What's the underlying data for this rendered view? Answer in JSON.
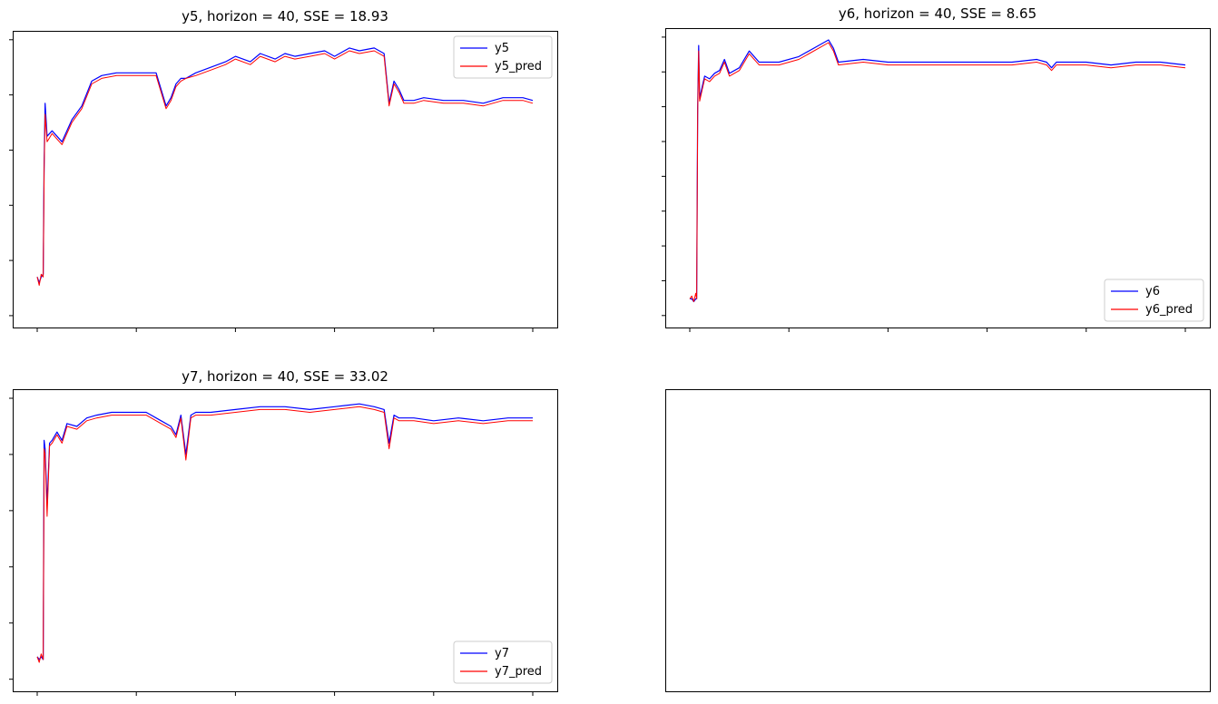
{
  "figure": {
    "background": "#ffffff",
    "layout": "2x2 grid; bottom-right panel empty",
    "colors": {
      "actual": "#0000ff",
      "predicted": "#ff0000"
    }
  },
  "chart_data": [
    {
      "type": "line",
      "title": "y5, horizon = 40, SSE = 18.93",
      "xlabel": "",
      "ylabel": "",
      "x_tick_labels": "none shown",
      "y_tick_labels": "none shown",
      "x_ticks": 6,
      "y_ticks": 6,
      "xlim": [
        0,
        1
      ],
      "ylim": [
        0,
        1
      ],
      "legend_location": "upper right",
      "grid": false,
      "series": [
        {
          "name": "y5",
          "color": "#0000ff",
          "x": [
            0,
            0.004,
            0.008,
            0.012,
            0.014,
            0.016,
            0.02,
            0.03,
            0.05,
            0.07,
            0.09,
            0.11,
            0.13,
            0.16,
            0.2,
            0.24,
            0.25,
            0.26,
            0.27,
            0.28,
            0.29,
            0.3,
            0.32,
            0.35,
            0.38,
            0.4,
            0.43,
            0.45,
            0.48,
            0.5,
            0.52,
            0.55,
            0.58,
            0.6,
            0.63,
            0.65,
            0.68,
            0.7,
            0.71,
            0.72,
            0.73,
            0.74,
            0.76,
            0.78,
            0.82,
            0.86,
            0.9,
            0.94,
            0.98,
            1.0
          ],
          "y": [
            0.14,
            0.12,
            0.14,
            0.15,
            0.55,
            0.77,
            0.65,
            0.67,
            0.63,
            0.71,
            0.76,
            0.85,
            0.87,
            0.88,
            0.88,
            0.88,
            0.82,
            0.76,
            0.79,
            0.84,
            0.86,
            0.86,
            0.88,
            0.9,
            0.92,
            0.94,
            0.92,
            0.95,
            0.93,
            0.95,
            0.94,
            0.95,
            0.96,
            0.94,
            0.97,
            0.96,
            0.97,
            0.95,
            0.77,
            0.85,
            0.82,
            0.78,
            0.78,
            0.79,
            0.78,
            0.78,
            0.77,
            0.79,
            0.79,
            0.78
          ]
        },
        {
          "name": "y5_pred",
          "color": "#ff0000",
          "x": [
            0,
            0.004,
            0.008,
            0.012,
            0.014,
            0.016,
            0.02,
            0.03,
            0.05,
            0.07,
            0.09,
            0.11,
            0.13,
            0.16,
            0.2,
            0.24,
            0.25,
            0.26,
            0.27,
            0.28,
            0.29,
            0.3,
            0.32,
            0.35,
            0.38,
            0.4,
            0.43,
            0.45,
            0.48,
            0.5,
            0.52,
            0.55,
            0.58,
            0.6,
            0.63,
            0.65,
            0.68,
            0.7,
            0.71,
            0.72,
            0.73,
            0.74,
            0.76,
            0.78,
            0.82,
            0.86,
            0.9,
            0.94,
            0.98,
            1.0
          ],
          "y": [
            0.14,
            0.11,
            0.15,
            0.14,
            0.52,
            0.73,
            0.63,
            0.66,
            0.62,
            0.7,
            0.75,
            0.84,
            0.86,
            0.87,
            0.87,
            0.87,
            0.81,
            0.75,
            0.78,
            0.83,
            0.85,
            0.86,
            0.87,
            0.89,
            0.91,
            0.93,
            0.91,
            0.94,
            0.92,
            0.94,
            0.93,
            0.94,
            0.95,
            0.93,
            0.96,
            0.95,
            0.96,
            0.94,
            0.76,
            0.84,
            0.81,
            0.77,
            0.77,
            0.78,
            0.77,
            0.77,
            0.76,
            0.78,
            0.78,
            0.77
          ]
        }
      ]
    },
    {
      "type": "line",
      "title": "y6, horizon = 40, SSE = 8.65",
      "xlabel": "",
      "ylabel": "",
      "x_tick_labels": "none shown",
      "y_tick_labels": "none shown",
      "x_ticks": 6,
      "y_ticks": 9,
      "xlim": [
        0,
        1
      ],
      "ylim": [
        0,
        1
      ],
      "legend_location": "lower right",
      "grid": false,
      "series": [
        {
          "name": "y6",
          "color": "#0000ff",
          "x": [
            0,
            0.004,
            0.008,
            0.012,
            0.014,
            0.016,
            0.018,
            0.02,
            0.025,
            0.03,
            0.04,
            0.05,
            0.06,
            0.07,
            0.08,
            0.1,
            0.12,
            0.14,
            0.18,
            0.22,
            0.26,
            0.28,
            0.29,
            0.3,
            0.35,
            0.4,
            0.5,
            0.6,
            0.65,
            0.7,
            0.72,
            0.73,
            0.74,
            0.76,
            0.8,
            0.85,
            0.9,
            0.95,
            1.0
          ],
          "y": [
            0.06,
            0.06,
            0.05,
            0.06,
            0.06,
            0.75,
            0.97,
            0.78,
            0.82,
            0.86,
            0.85,
            0.87,
            0.88,
            0.92,
            0.87,
            0.89,
            0.95,
            0.91,
            0.91,
            0.93,
            0.97,
            0.99,
            0.96,
            0.91,
            0.92,
            0.91,
            0.91,
            0.91,
            0.91,
            0.92,
            0.91,
            0.89,
            0.91,
            0.91,
            0.91,
            0.9,
            0.91,
            0.91,
            0.9
          ]
        },
        {
          "name": "y6_pred",
          "color": "#ff0000",
          "x": [
            0,
            0.004,
            0.008,
            0.012,
            0.014,
            0.016,
            0.018,
            0.02,
            0.025,
            0.03,
            0.04,
            0.05,
            0.06,
            0.07,
            0.08,
            0.1,
            0.12,
            0.14,
            0.18,
            0.22,
            0.26,
            0.28,
            0.29,
            0.3,
            0.35,
            0.4,
            0.5,
            0.6,
            0.65,
            0.7,
            0.72,
            0.73,
            0.74,
            0.76,
            0.8,
            0.85,
            0.9,
            0.95,
            1.0
          ],
          "y": [
            0.06,
            0.07,
            0.05,
            0.08,
            0.06,
            0.72,
            0.95,
            0.77,
            0.81,
            0.85,
            0.84,
            0.86,
            0.87,
            0.91,
            0.86,
            0.88,
            0.94,
            0.9,
            0.9,
            0.92,
            0.96,
            0.98,
            0.95,
            0.9,
            0.91,
            0.9,
            0.9,
            0.9,
            0.9,
            0.91,
            0.9,
            0.88,
            0.9,
            0.9,
            0.9,
            0.89,
            0.9,
            0.9,
            0.89
          ]
        }
      ]
    },
    {
      "type": "line",
      "title": "y7, horizon = 40, SSE = 33.02",
      "xlabel": "",
      "ylabel": "",
      "x_tick_labels": "none shown",
      "y_tick_labels": "none shown",
      "x_ticks": 6,
      "y_ticks": 6,
      "xlim": [
        0,
        1
      ],
      "ylim": [
        0,
        1
      ],
      "legend_location": "lower right",
      "grid": false,
      "series": [
        {
          "name": "y7",
          "color": "#0000ff",
          "x": [
            0,
            0.004,
            0.008,
            0.012,
            0.014,
            0.016,
            0.02,
            0.025,
            0.03,
            0.04,
            0.05,
            0.06,
            0.08,
            0.1,
            0.12,
            0.15,
            0.18,
            0.22,
            0.25,
            0.27,
            0.28,
            0.29,
            0.3,
            0.31,
            0.32,
            0.35,
            0.4,
            0.45,
            0.5,
            0.55,
            0.6,
            0.65,
            0.68,
            0.7,
            0.71,
            0.72,
            0.73,
            0.76,
            0.8,
            0.85,
            0.9,
            0.95,
            1.0
          ],
          "y": [
            0.08,
            0.07,
            0.08,
            0.07,
            0.85,
            0.82,
            0.62,
            0.84,
            0.85,
            0.88,
            0.85,
            0.91,
            0.9,
            0.93,
            0.94,
            0.95,
            0.95,
            0.95,
            0.92,
            0.9,
            0.87,
            0.94,
            0.8,
            0.94,
            0.95,
            0.95,
            0.96,
            0.97,
            0.97,
            0.96,
            0.97,
            0.98,
            0.97,
            0.96,
            0.84,
            0.94,
            0.93,
            0.93,
            0.92,
            0.93,
            0.92,
            0.93,
            0.93
          ]
        },
        {
          "name": "y7_pred",
          "color": "#ff0000",
          "x": [
            0,
            0.004,
            0.008,
            0.012,
            0.014,
            0.016,
            0.02,
            0.025,
            0.03,
            0.04,
            0.05,
            0.06,
            0.08,
            0.1,
            0.12,
            0.15,
            0.18,
            0.22,
            0.25,
            0.27,
            0.28,
            0.29,
            0.3,
            0.31,
            0.32,
            0.35,
            0.4,
            0.45,
            0.5,
            0.55,
            0.6,
            0.65,
            0.68,
            0.7,
            0.71,
            0.72,
            0.73,
            0.76,
            0.8,
            0.85,
            0.9,
            0.95,
            1.0
          ],
          "y": [
            0.08,
            0.06,
            0.09,
            0.07,
            0.82,
            0.8,
            0.58,
            0.83,
            0.84,
            0.87,
            0.84,
            0.9,
            0.89,
            0.92,
            0.93,
            0.94,
            0.94,
            0.94,
            0.91,
            0.89,
            0.86,
            0.93,
            0.78,
            0.93,
            0.94,
            0.94,
            0.95,
            0.96,
            0.96,
            0.95,
            0.96,
            0.97,
            0.96,
            0.95,
            0.82,
            0.93,
            0.92,
            0.92,
            0.91,
            0.92,
            0.91,
            0.92,
            0.92
          ]
        }
      ]
    },
    {
      "type": "line",
      "title": "",
      "xlabel": "",
      "ylabel": "",
      "series": []
    }
  ]
}
